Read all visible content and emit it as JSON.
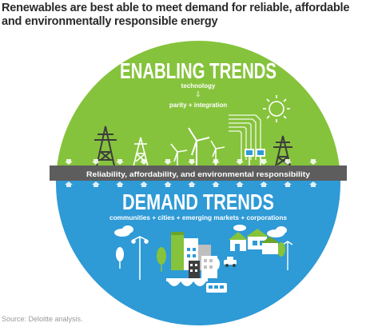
{
  "title": "Renewables are best able to meet demand for reliable, affordable and environmentally responsible energy",
  "enabling": {
    "heading": "ENABLING TRENDS",
    "line1": "technology",
    "arrow": "⇩",
    "line2": "parity + integration"
  },
  "band": {
    "label": "Reliability, affordability, and environmental responsibility"
  },
  "demand": {
    "heading": "DEMAND TRENDS",
    "line1": "communities + cities + emerging markets + corporations"
  },
  "source": "Source: Deloitte analysis.",
  "colors": {
    "green": "#86c33c",
    "blue": "#2e9ad6",
    "band": "#5d5d5d",
    "icon_dark": "#3d3d3d",
    "icon_light": "#ffffff"
  }
}
